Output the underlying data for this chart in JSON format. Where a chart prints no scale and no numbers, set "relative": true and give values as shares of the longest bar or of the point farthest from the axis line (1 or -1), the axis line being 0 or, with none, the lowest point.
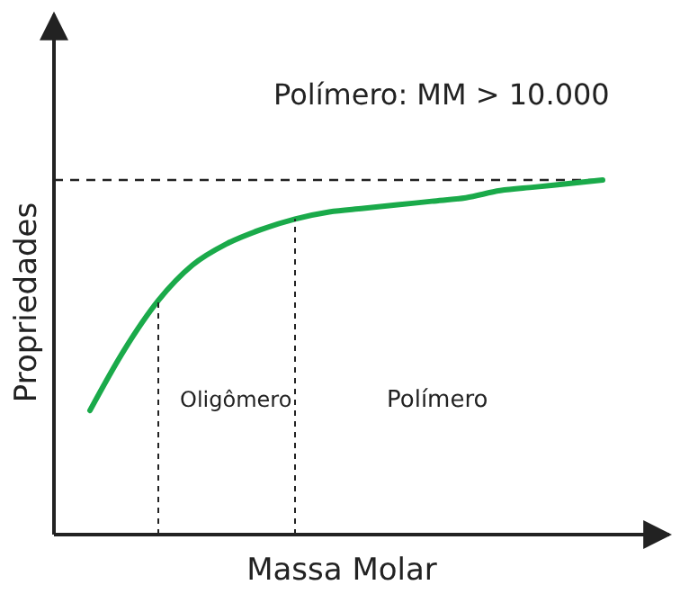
{
  "chart_data": {
    "type": "line",
    "relative": true,
    "xlabel": "Massa Molar",
    "ylabel": "Propriedades",
    "categories": [
      null,
      null,
      null,
      null,
      null,
      null,
      null,
      null,
      null,
      null,
      null,
      null,
      null,
      null,
      null,
      null
    ],
    "series": [
      {
        "color": "#1aaa4a",
        "values": [
          0.35,
          0.52,
          0.66,
          0.76,
          0.82,
          0.86,
          0.89,
          0.91,
          0.92,
          0.93,
          0.94,
          0.95,
          0.97,
          0.98,
          0.99,
          1
        ]
      }
    ],
    "ref_lines": [
      {
        "axis": "y",
        "value": 1,
        "line_style": "dashed"
      }
    ],
    "annotations": [
      "Polímero: MM > 10.000",
      "Oligômero",
      "Polímero"
    ],
    "line_style": "solid"
  }
}
